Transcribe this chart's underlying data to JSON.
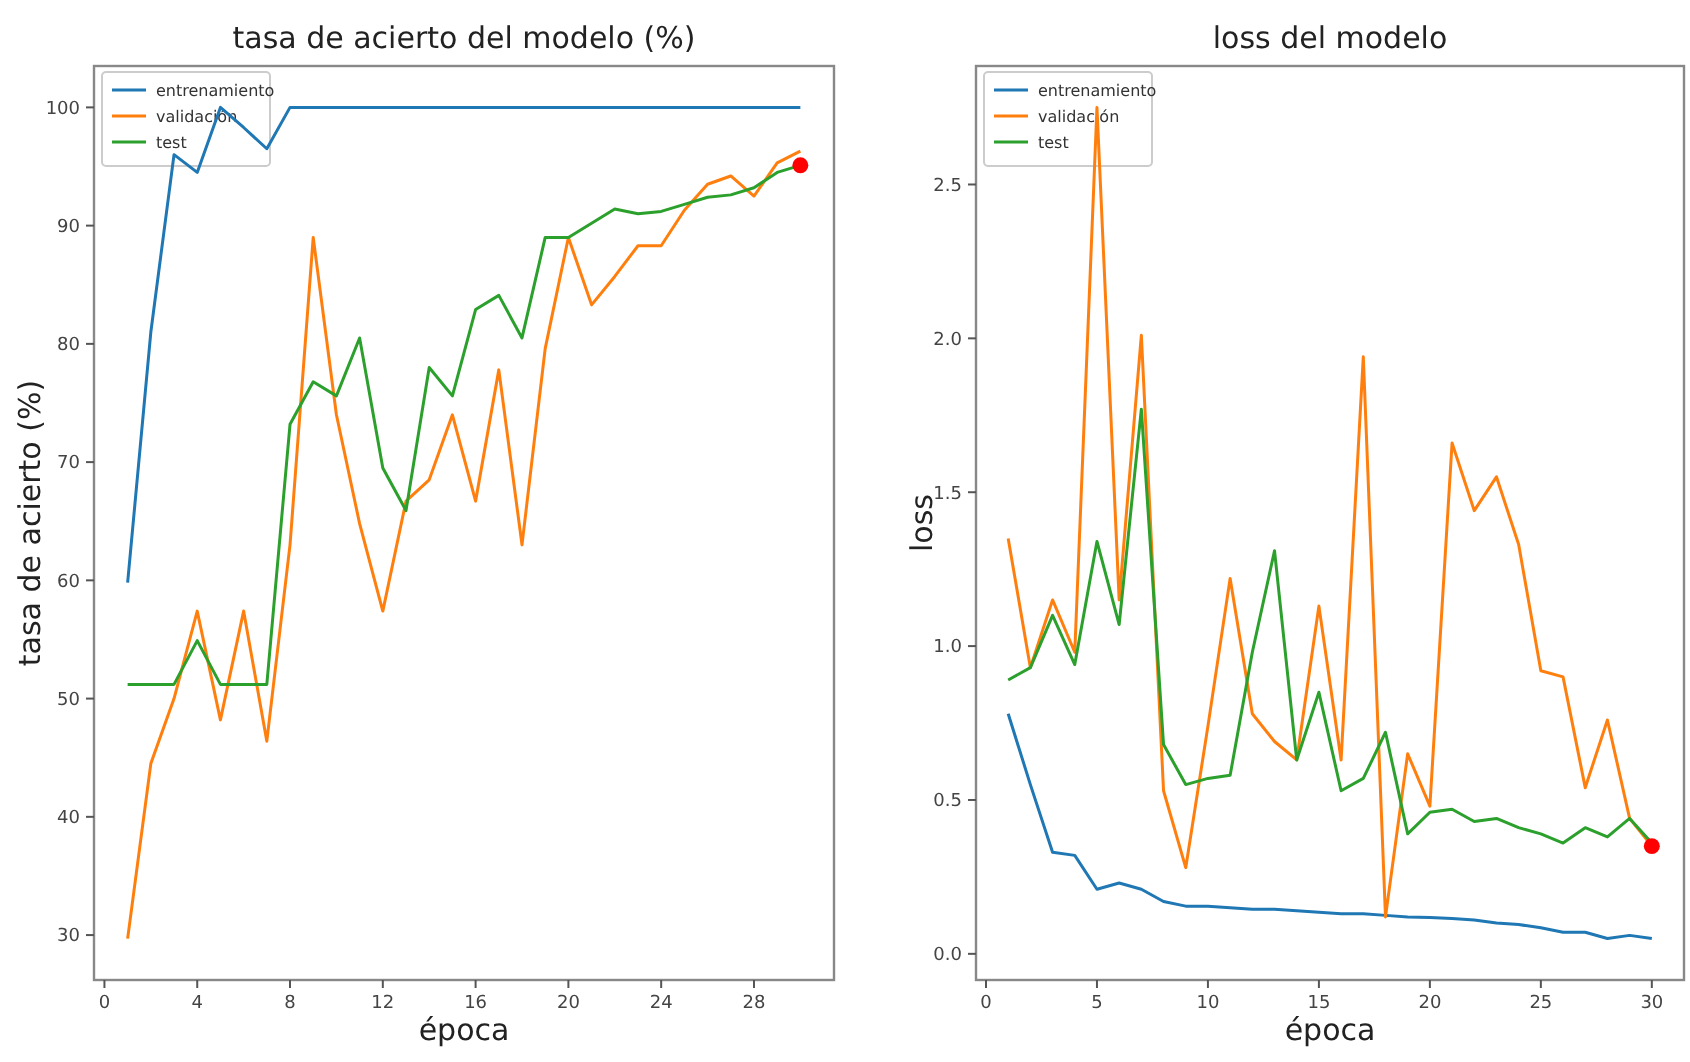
{
  "chart_data": [
    {
      "type": "line",
      "title": "tasa de acierto del modelo (%)",
      "xlabel": "época",
      "ylabel": "tasa de acierto (%)",
      "x": [
        1,
        2,
        3,
        4,
        5,
        6,
        7,
        8,
        9,
        10,
        11,
        12,
        13,
        14,
        15,
        16,
        17,
        18,
        19,
        20,
        21,
        22,
        23,
        24,
        25,
        26,
        27,
        28,
        29,
        30
      ],
      "xlim": [
        -0.45,
        31.45
      ],
      "xticks": [
        0,
        4,
        8,
        12,
        16,
        20,
        24,
        28
      ],
      "ylim": [
        26.2,
        103.5
      ],
      "yticks": [
        30,
        40,
        50,
        60,
        70,
        80,
        90,
        100
      ],
      "legend": "top left",
      "grid": false,
      "series": [
        {
          "name": "entrenamiento",
          "color": "#1f77b4",
          "values": [
            59.8,
            81,
            96,
            94.5,
            100,
            98.3,
            96.5,
            100,
            100,
            100,
            100,
            100,
            100,
            100,
            100,
            100,
            100,
            100,
            100,
            100,
            100,
            100,
            100,
            100,
            100,
            100,
            100,
            100,
            100,
            100
          ]
        },
        {
          "name": "validación",
          "color": "#ff7f0e",
          "values": [
            29.7,
            44.5,
            50,
            57.4,
            48.2,
            57.4,
            46.4,
            63,
            89,
            74,
            64.8,
            57.4,
            66.7,
            68.5,
            74,
            66.7,
            77.8,
            63,
            79.6,
            89,
            83.3,
            85.7,
            88.3,
            88.3,
            91.3,
            93.5,
            94.2,
            92.5,
            95.3,
            96.3
          ]
        },
        {
          "name": "test",
          "color": "#2ca02c",
          "values": [
            51.2,
            51.2,
            51.2,
            54.9,
            51.2,
            51.2,
            51.2,
            73.2,
            76.8,
            75.6,
            80.5,
            69.5,
            65.9,
            78,
            75.6,
            82.9,
            84.1,
            80.5,
            89,
            89,
            90.2,
            91.4,
            91,
            91.2,
            91.8,
            92.4,
            92.6,
            93.2,
            94.5,
            95.1
          ]
        },
        {
          "type": "scatter",
          "marker": "circle",
          "color": "#ff0000",
          "x": [
            30
          ],
          "values": [
            95.1
          ]
        }
      ]
    },
    {
      "type": "line",
      "title": "loss del modelo",
      "xlabel": "época",
      "ylabel": "loss",
      "x": [
        1,
        2,
        3,
        4,
        5,
        6,
        7,
        8,
        9,
        10,
        11,
        12,
        13,
        14,
        15,
        16,
        17,
        18,
        19,
        20,
        21,
        22,
        23,
        24,
        25,
        26,
        27,
        28,
        29,
        30
      ],
      "xlim": [
        -0.45,
        31.45
      ],
      "xticks": [
        0,
        5,
        10,
        15,
        20,
        25,
        30
      ],
      "ylim": [
        -0.085,
        2.885
      ],
      "yticks": [
        {
          "value": 0,
          "label": "0.0"
        },
        0.5,
        {
          "value": 1,
          "label": "1.0"
        },
        1.5,
        {
          "value": 2,
          "label": "2.0"
        },
        2.5
      ],
      "legend": "top left",
      "grid": false,
      "series": [
        {
          "name": "entrenamiento",
          "color": "#1f77b4",
          "values": [
            0.78,
            0.55,
            0.33,
            0.32,
            0.21,
            0.23,
            0.21,
            0.17,
            0.155,
            0.155,
            0.15,
            0.145,
            0.145,
            0.14,
            0.135,
            0.13,
            0.13,
            0.125,
            0.12,
            0.118,
            0.115,
            0.11,
            0.1,
            0.095,
            0.085,
            0.07,
            0.07,
            0.05,
            0.06,
            0.05
          ]
        },
        {
          "name": "validación",
          "color": "#ff7f0e",
          "values": [
            1.35,
            0.93,
            1.15,
            0.98,
            2.75,
            1.15,
            2.01,
            0.53,
            0.28,
            0.74,
            1.22,
            0.78,
            0.69,
            0.63,
            1.13,
            0.63,
            1.94,
            0.12,
            0.65,
            0.48,
            1.66,
            1.44,
            1.55,
            1.33,
            0.92,
            0.9,
            0.54,
            0.76,
            0.44,
            0.35
          ]
        },
        {
          "name": "test",
          "color": "#2ca02c",
          "values": [
            0.89,
            0.93,
            1.1,
            0.94,
            1.34,
            1.07,
            1.77,
            0.68,
            0.55,
            0.57,
            0.58,
            0.98,
            1.31,
            0.63,
            0.85,
            0.53,
            0.57,
            0.72,
            0.39,
            0.46,
            0.47,
            0.43,
            0.44,
            0.41,
            0.39,
            0.36,
            0.41,
            0.38,
            0.44,
            0.36
          ]
        },
        {
          "type": "scatter",
          "marker": "circle",
          "color": "#ff0000",
          "x": [
            30
          ],
          "values": [
            0.35
          ]
        }
      ]
    }
  ]
}
